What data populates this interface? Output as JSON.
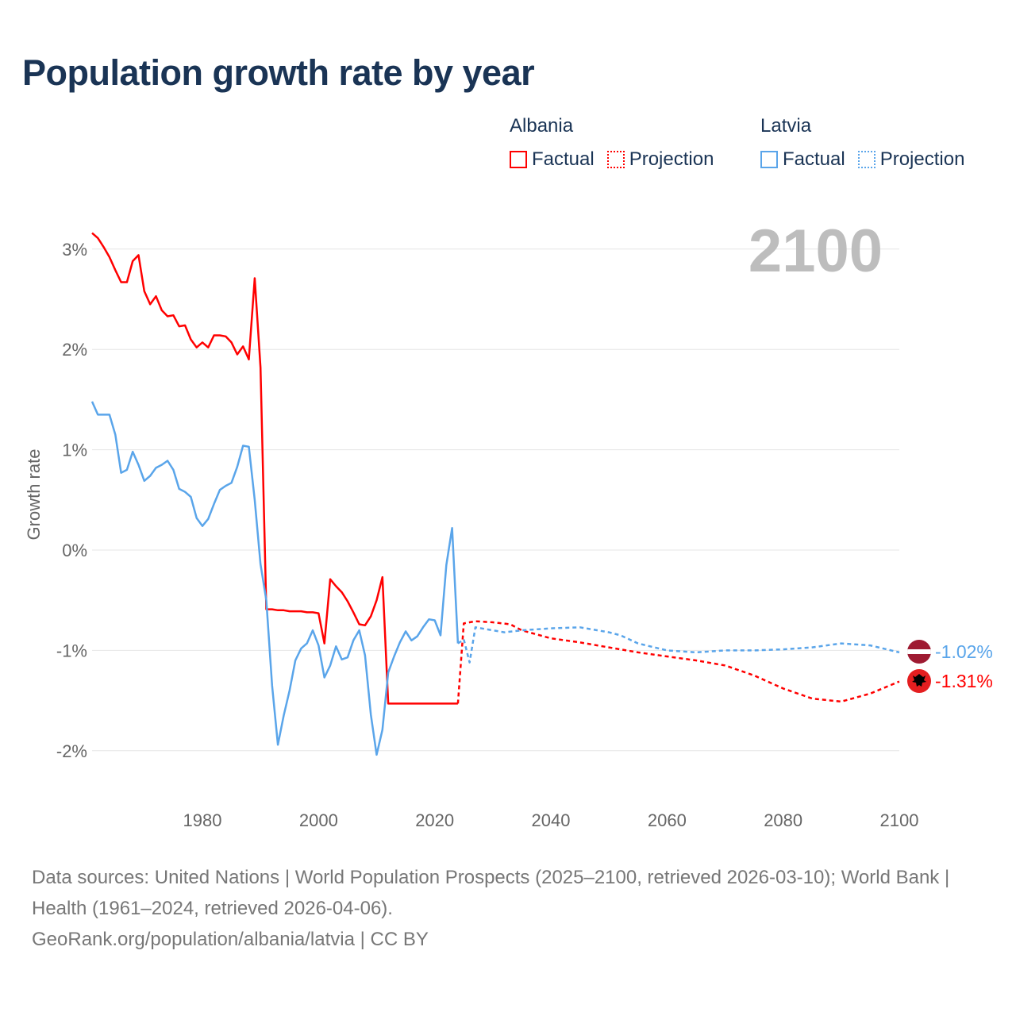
{
  "title": "Population growth rate by year",
  "legend": {
    "groups": [
      {
        "name": "Albania",
        "color": "#ff0000",
        "factual": "Factual",
        "projection": "Projection"
      },
      {
        "name": "Latvia",
        "color": "#5aa5ea",
        "factual": "Factual",
        "projection": "Projection"
      }
    ]
  },
  "current_year_label": "2100",
  "end_labels": {
    "latvia": "-1.02%",
    "albania": "-1.31%"
  },
  "footer": {
    "line1": "Data sources: United Nations | World Population Prospects (2025–2100, retrieved 2026-03-10); World Bank | Health (1961–2024, retrieved 2026-04-06).",
    "line2": "GeoRank.org/population/albania/latvia | CC BY"
  },
  "chart_data": {
    "type": "line",
    "title": "Population growth rate by year",
    "xlabel": "",
    "ylabel": "Growth rate",
    "xlim": [
      1961,
      2100
    ],
    "ylim": [
      -2.5,
      3.3
    ],
    "xticks": [
      1980,
      2000,
      2020,
      2040,
      2060,
      2080,
      2100
    ],
    "yticks": [
      {
        "v": 3,
        "label": "3%"
      },
      {
        "v": 2,
        "label": "2%"
      },
      {
        "v": 1,
        "label": "1%"
      },
      {
        "v": 0,
        "label": "0%"
      },
      {
        "v": -1,
        "label": "-1%"
      },
      {
        "v": -2,
        "label": "-2%"
      }
    ],
    "grid": true,
    "legend": "top-right",
    "series": [
      {
        "name": "Albania Factual",
        "color": "#ff0000",
        "dashed": false,
        "x_start": 1961,
        "values": [
          3.16,
          3.11,
          3.02,
          2.92,
          2.79,
          2.67,
          2.67,
          2.88,
          2.94,
          2.58,
          2.45,
          2.53,
          2.39,
          2.33,
          2.34,
          2.23,
          2.24,
          2.1,
          2.02,
          2.07,
          2.02,
          2.14,
          2.14,
          2.13,
          2.07,
          1.95,
          2.03,
          1.9,
          2.71,
          1.82,
          -0.59,
          -0.59,
          -0.6,
          -0.6,
          -0.61,
          -0.61,
          -0.61,
          -0.62,
          -0.62,
          -0.63,
          -0.93,
          -0.29,
          -0.36,
          -0.42,
          -0.51,
          -0.62,
          -0.74,
          -0.75,
          -0.66,
          -0.5,
          -0.27,
          -1.53,
          -1.53,
          -1.53,
          -1.53,
          -1.53,
          -1.53,
          -1.53,
          -1.53,
          -1.53,
          -1.53,
          -1.53,
          -1.53,
          -1.53
        ]
      },
      {
        "name": "Albania Projection",
        "color": "#ff0000",
        "dashed": true,
        "x": [
          2024,
          2025,
          2026,
          2027,
          2030,
          2033,
          2035,
          2040,
          2045,
          2048,
          2050,
          2055,
          2060,
          2065,
          2070,
          2075,
          2080,
          2085,
          2090,
          2095,
          2100
        ],
        "values": [
          -1.53,
          -0.73,
          -0.72,
          -0.71,
          -0.72,
          -0.74,
          -0.8,
          -0.88,
          -0.92,
          -0.95,
          -0.97,
          -1.02,
          -1.06,
          -1.1,
          -1.15,
          -1.25,
          -1.38,
          -1.48,
          -1.51,
          -1.43,
          -1.31
        ]
      },
      {
        "name": "Latvia Factual",
        "color": "#5aa5ea",
        "dashed": false,
        "x_start": 1961,
        "values": [
          1.48,
          1.35,
          1.35,
          1.35,
          1.15,
          0.77,
          0.8,
          0.98,
          0.85,
          0.69,
          0.74,
          0.82,
          0.85,
          0.89,
          0.8,
          0.61,
          0.58,
          0.53,
          0.32,
          0.24,
          0.31,
          0.46,
          0.6,
          0.64,
          0.67,
          0.83,
          1.04,
          1.03,
          0.5,
          -0.14,
          -0.5,
          -1.35,
          -1.94,
          -1.65,
          -1.4,
          -1.1,
          -0.98,
          -0.93,
          -0.8,
          -0.95,
          -1.27,
          -1.15,
          -0.96,
          -1.09,
          -1.07,
          -0.9,
          -0.8,
          -1.05,
          -1.64,
          -2.04,
          -1.79,
          -1.22,
          -1.06,
          -0.92,
          -0.81,
          -0.9,
          -0.86,
          -0.77,
          -0.69,
          -0.7,
          -0.85,
          -0.15,
          0.22,
          -0.93
        ]
      },
      {
        "name": "Latvia Projection",
        "color": "#5aa5ea",
        "dashed": true,
        "x": [
          2024,
          2025,
          2026,
          2027,
          2030,
          2032,
          2035,
          2040,
          2045,
          2050,
          2052,
          2055,
          2060,
          2065,
          2070,
          2075,
          2080,
          2085,
          2090,
          2095,
          2100
        ],
        "values": [
          -0.93,
          -0.89,
          -1.12,
          -0.77,
          -0.8,
          -0.82,
          -0.8,
          -0.78,
          -0.77,
          -0.82,
          -0.85,
          -0.93,
          -1.0,
          -1.02,
          -1.0,
          -1.0,
          -0.99,
          -0.97,
          -0.93,
          -0.95,
          -1.02
        ]
      }
    ]
  }
}
